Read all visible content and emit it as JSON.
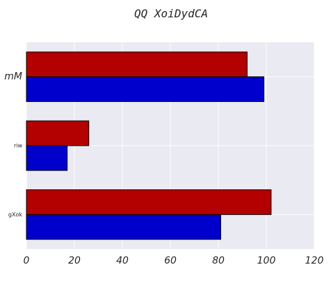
{
  "chart_data": {
    "type": "bar",
    "orientation": "horizontal",
    "title": "QQ XoiDydCA",
    "xlabel": "",
    "ylabel": "",
    "categories": [
      "gXok",
      "riw",
      "mM"
    ],
    "series": [
      {
        "values": [
          81,
          17,
          99
        ],
        "color": "#0000cc"
      },
      {
        "values": [
          102,
          26,
          92
        ],
        "color": "#b30000"
      }
    ],
    "xlim": [
      0,
      120
    ],
    "xticks": [
      0,
      20,
      40,
      60,
      80,
      100,
      120
    ],
    "grid": true,
    "legend": false,
    "background": "#eaeaf2",
    "grid_color": "#ffffff",
    "bar_edge_color": "#000000"
  }
}
